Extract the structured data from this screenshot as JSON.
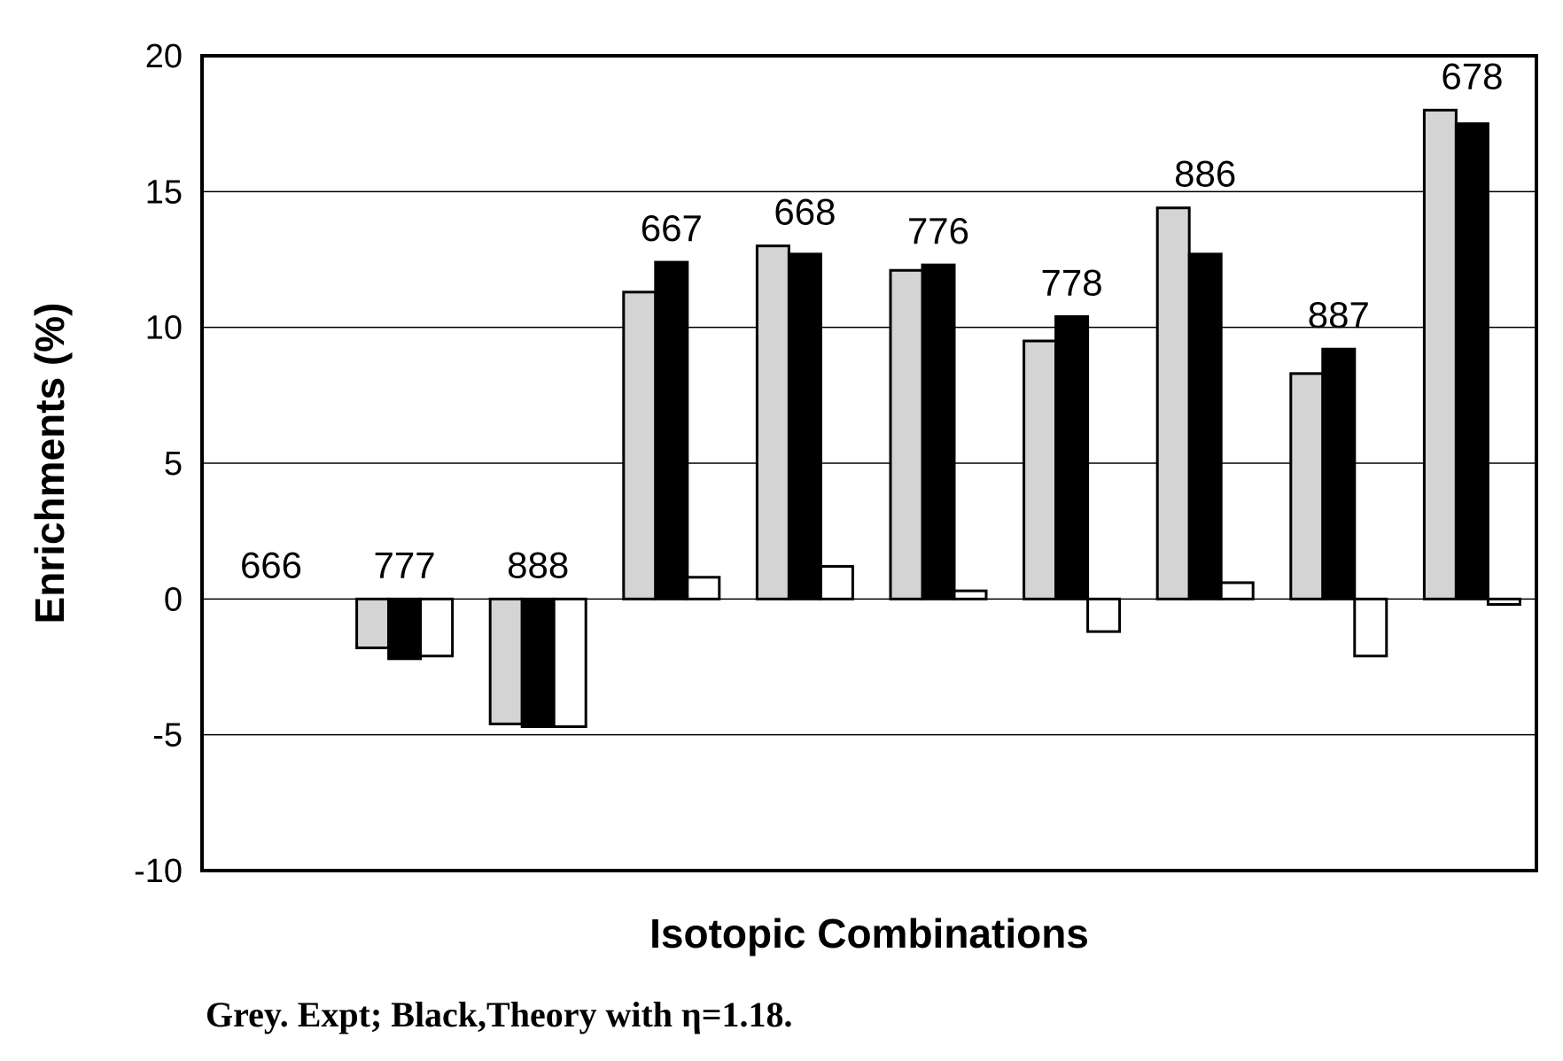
{
  "chart_data": {
    "type": "bar",
    "title": "",
    "xlabel": "Isotopic Combinations",
    "ylabel": "Enrichments (%)",
    "ylim": [
      -10,
      20
    ],
    "yticks": [
      20,
      15,
      10,
      5,
      0,
      -5,
      -10
    ],
    "grid": true,
    "categories": [
      "666",
      "777",
      "888",
      "667",
      "668",
      "776",
      "778",
      "886",
      "887",
      "678"
    ],
    "series": [
      {
        "name": "Grey. Expt",
        "color": "#d4d4d4",
        "values": [
          0,
          -1.8,
          -4.6,
          11.3,
          13.0,
          12.1,
          9.5,
          14.4,
          8.3,
          18.0
        ]
      },
      {
        "name": "Black,Theory with η=1.18",
        "color": "#000000",
        "values": [
          0,
          -2.2,
          -4.7,
          12.4,
          12.7,
          12.3,
          10.4,
          12.7,
          9.2,
          17.5
        ]
      },
      {
        "color": "#ffffff",
        "values": [
          0,
          -2.1,
          -4.7,
          0.8,
          1.2,
          0.3,
          -1.2,
          0.6,
          -2.1,
          -0.2
        ]
      }
    ]
  },
  "caption": "Grey. Expt; Black,Theory with η=1.18."
}
